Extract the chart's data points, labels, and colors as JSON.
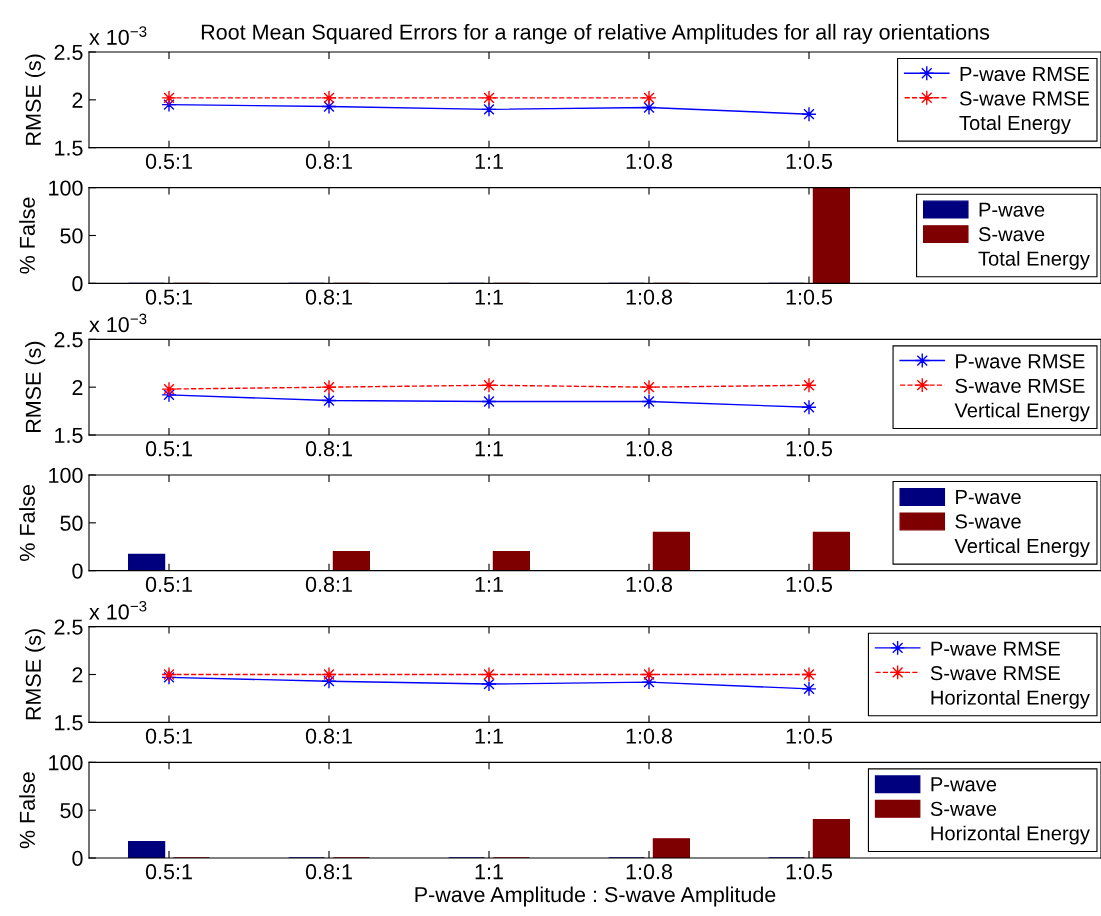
{
  "chart_data": [
    {
      "type": "line",
      "title": "Root Mean Squared Errors for a range of relative Amplitudes for all ray orientations",
      "ylabel": "RMSE (s)",
      "categories": [
        "0.5:1",
        "0.8:1",
        "1:1",
        "1:0.8",
        "1:0.5"
      ],
      "series": [
        {
          "name": "P-wave RMSE",
          "color": "#0000ff",
          "line_style": "solid",
          "values": [
            1.95,
            1.93,
            1.9,
            1.92,
            1.85
          ]
        },
        {
          "name": "S-wave RMSE",
          "color": "#ff0000",
          "line_style": "dashed",
          "values": [
            2.02,
            2.02,
            2.02,
            2.02,
            null
          ]
        }
      ],
      "ylim": [
        1.5,
        2.5
      ],
      "yticks": [
        1.5,
        2,
        2.5
      ],
      "marker": "star",
      "legend": "right",
      "legend_title": "Total Energy",
      "annotations": [
        "x 10$^{−3}$"
      ]
    },
    {
      "type": "bar",
      "ylabel": "% False",
      "categories": [
        "0.5:1",
        "0.8:1",
        "1:1",
        "1:0.8",
        "1:0.5"
      ],
      "series": [
        {
          "name": "P-wave",
          "color": "#00007f",
          "values": [
            0,
            0,
            0,
            0,
            0
          ]
        },
        {
          "name": "S-wave",
          "color": "#7f0000",
          "values": [
            0,
            0,
            0,
            0,
            100
          ]
        }
      ],
      "ylim": [
        0,
        100
      ],
      "yticks": [
        0,
        50,
        100
      ],
      "legend": "right",
      "legend_title": "Total Energy"
    },
    {
      "type": "line",
      "ylabel": "RMSE (s)",
      "categories": [
        "0.5:1",
        "0.8:1",
        "1:1",
        "1:0.8",
        "1:0.5"
      ],
      "series": [
        {
          "name": "P-wave RMSE",
          "color": "#0000ff",
          "line_style": "solid",
          "values": [
            1.92,
            1.86,
            1.85,
            1.85,
            1.79
          ]
        },
        {
          "name": "S-wave RMSE",
          "color": "#ff0000",
          "line_style": "dashed",
          "values": [
            1.98,
            2.0,
            2.02,
            2.0,
            2.02
          ]
        }
      ],
      "ylim": [
        1.5,
        2.5
      ],
      "yticks": [
        1.5,
        2,
        2.5
      ],
      "marker": "star",
      "legend": "right",
      "legend_title": "Vertical Energy",
      "annotations": [
        "x 10$^{−3}$"
      ]
    },
    {
      "type": "bar",
      "ylabel": "% False",
      "categories": [
        "0.5:1",
        "0.8:1",
        "1:1",
        "1:0.8",
        "1:0.5"
      ],
      "series": [
        {
          "name": "P-wave",
          "color": "#00007f",
          "values": [
            17,
            0,
            0,
            0,
            0
          ]
        },
        {
          "name": "S-wave",
          "color": "#7f0000",
          "values": [
            0,
            20,
            20,
            40,
            40
          ]
        }
      ],
      "ylim": [
        0,
        100
      ],
      "yticks": [
        0,
        50,
        100
      ],
      "legend": "right",
      "legend_title": "Vertical Energy"
    },
    {
      "type": "line",
      "ylabel": "RMSE (s)",
      "categories": [
        "0.5:1",
        "0.8:1",
        "1:1",
        "1:0.8",
        "1:0.5"
      ],
      "series": [
        {
          "name": "P-wave RMSE",
          "color": "#0000ff",
          "line_style": "solid",
          "values": [
            1.97,
            1.93,
            1.9,
            1.92,
            1.85
          ]
        },
        {
          "name": "S-wave RMSE",
          "color": "#ff0000",
          "line_style": "dashed",
          "values": [
            2.0,
            2.0,
            2.0,
            2.0,
            2.0
          ]
        }
      ],
      "ylim": [
        1.5,
        2.5
      ],
      "yticks": [
        1.5,
        2,
        2.5
      ],
      "marker": "star",
      "legend": "right",
      "legend_title": "Horizontal Energy",
      "annotations": [
        "x 10$^{−3}$"
      ]
    },
    {
      "type": "bar",
      "ylabel": "% False",
      "xlabel": "P-wave Amplitude : S-wave Amplitude",
      "categories": [
        "0.5:1",
        "0.8:1",
        "1:1",
        "1:0.8",
        "1:0.5"
      ],
      "series": [
        {
          "name": "P-wave",
          "color": "#00007f",
          "values": [
            17,
            0,
            0,
            0,
            0
          ]
        },
        {
          "name": "S-wave",
          "color": "#7f0000",
          "values": [
            0,
            0,
            0,
            20,
            40
          ]
        }
      ],
      "ylim": [
        0,
        100
      ],
      "yticks": [
        0,
        50,
        100
      ],
      "legend": "right",
      "legend_title": "Horizontal Energy"
    }
  ]
}
